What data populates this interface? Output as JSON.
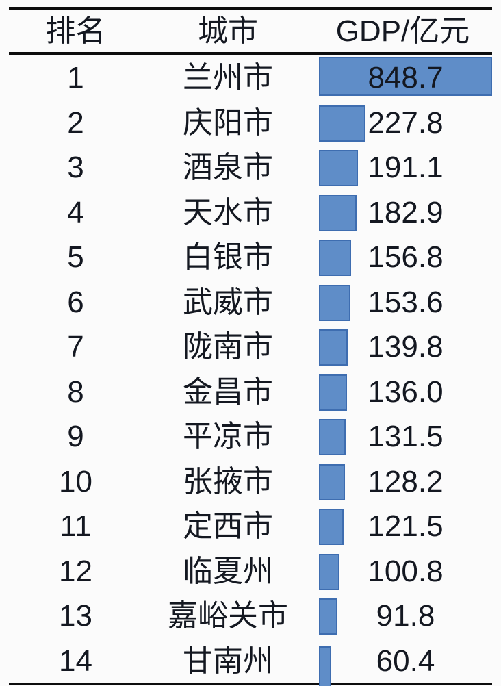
{
  "chart_data": {
    "type": "bar",
    "orientation": "horizontal",
    "headers": {
      "rank": "排名",
      "city": "城市",
      "gdp": "GDP/亿元"
    },
    "ranks": [
      1,
      2,
      3,
      4,
      5,
      6,
      7,
      8,
      9,
      10,
      11,
      12,
      13,
      14
    ],
    "categories": [
      "兰州市",
      "庆阳市",
      "酒泉市",
      "天水市",
      "白银市",
      "武威市",
      "陇南市",
      "金昌市",
      "平凉市",
      "张掖市",
      "定西市",
      "临夏州",
      "嘉峪关市",
      "甘南州"
    ],
    "values": [
      848.7,
      227.8,
      191.1,
      182.9,
      156.8,
      153.6,
      139.8,
      136.0,
      131.5,
      128.2,
      121.5,
      100.8,
      91.8,
      60.4
    ],
    "value_unit": "亿元",
    "value_decimals": 1,
    "max_value": 848.7,
    "bar_fill_color": "#5F8DC8",
    "bar_border_color": "#3E6DB0",
    "rule_color": "#0d0d0d",
    "legend": "none",
    "grid": "off"
  }
}
